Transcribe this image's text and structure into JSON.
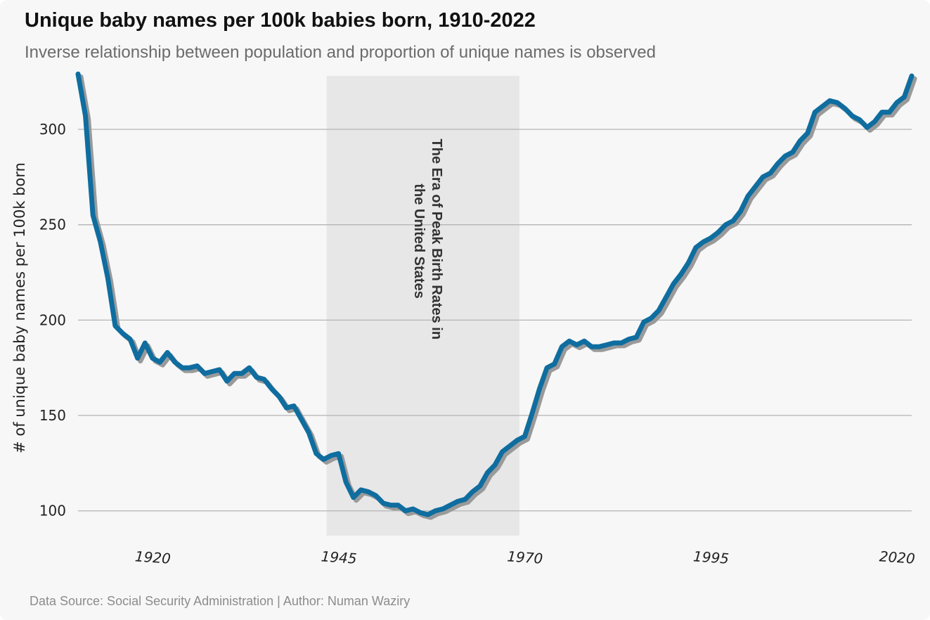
{
  "title": "Unique baby names per 100k babies born, 1910-2022",
  "subtitle": "Inverse relationship between population and proportion of unique names is observed",
  "footer": "Data Source: Social Security Administration  |  Author: Numan Waziry",
  "colors": {
    "line": "#0f6d9f",
    "shadow": "#9a9a9a",
    "band": "#e7e7e7",
    "grid": "#b4b4b4",
    "background": "#f7f7f7"
  },
  "chart_data": {
    "type": "line",
    "title": "Unique baby names per 100k babies born, 1910-2022",
    "xlabel": "",
    "ylabel": "# of unique baby names  per 100k born",
    "xlim": [
      1910,
      2022
    ],
    "ylim": [
      87,
      328
    ],
    "xticks": [
      1920,
      1945,
      1970,
      1995,
      2020
    ],
    "yticks": [
      100,
      150,
      200,
      250,
      300
    ],
    "grid": "horizontal",
    "annotation": {
      "label_lines": [
        "The Era of Peak Birth Rates in",
        "the United States"
      ],
      "x_range": [
        1943.4,
        1969.3
      ]
    },
    "series": [
      {
        "x": [
          1910,
          1911,
          1912,
          1913,
          1914,
          1915,
          1916,
          1917,
          1918,
          1919,
          1920,
          1921,
          1922,
          1923,
          1924,
          1925,
          1926,
          1927,
          1928,
          1929,
          1930,
          1931,
          1932,
          1933,
          1934,
          1935,
          1936,
          1937,
          1938,
          1939,
          1940,
          1941,
          1942,
          1943,
          1944,
          1945,
          1946,
          1947,
          1948,
          1949,
          1950,
          1951,
          1952,
          1953,
          1954,
          1955,
          1956,
          1957,
          1958,
          1959,
          1960,
          1961,
          1962,
          1963,
          1964,
          1965,
          1966,
          1967,
          1968,
          1969,
          1970,
          1971,
          1972,
          1973,
          1974,
          1975,
          1976,
          1977,
          1978,
          1979,
          1980,
          1981,
          1982,
          1983,
          1984,
          1985,
          1986,
          1987,
          1988,
          1989,
          1990,
          1991,
          1992,
          1993,
          1994,
          1995,
          1996,
          1997,
          1998,
          1999,
          2000,
          2001,
          2002,
          2003,
          2004,
          2005,
          2006,
          2007,
          2008,
          2009,
          2010,
          2011,
          2012,
          2013,
          2014,
          2015,
          2016,
          2017,
          2018,
          2019,
          2020,
          2021,
          2022
        ],
        "values": [
          329,
          307,
          255,
          241,
          222,
          197,
          193,
          190,
          180,
          188,
          180,
          178,
          183,
          178,
          175,
          175,
          176,
          172,
          173,
          174,
          168,
          172,
          172,
          175,
          170,
          169,
          164,
          160,
          154,
          155,
          148,
          141,
          130,
          127,
          129,
          130,
          115,
          107,
          111,
          110,
          108,
          104,
          103,
          103,
          100,
          101,
          99,
          98,
          100,
          101,
          103,
          105,
          106,
          110,
          113,
          120,
          124,
          131,
          134,
          137,
          139,
          151,
          164,
          175,
          177,
          186,
          189,
          187,
          189,
          186,
          186,
          187,
          188,
          188,
          190,
          191,
          199,
          201,
          205,
          212,
          219,
          224,
          230,
          238,
          241,
          243,
          246,
          250,
          252,
          257,
          265,
          270,
          275,
          277,
          282,
          286,
          288,
          294,
          298,
          309,
          312,
          315,
          314,
          311,
          307,
          305,
          301,
          304,
          309,
          309,
          314,
          317,
          328
        ]
      }
    ]
  }
}
